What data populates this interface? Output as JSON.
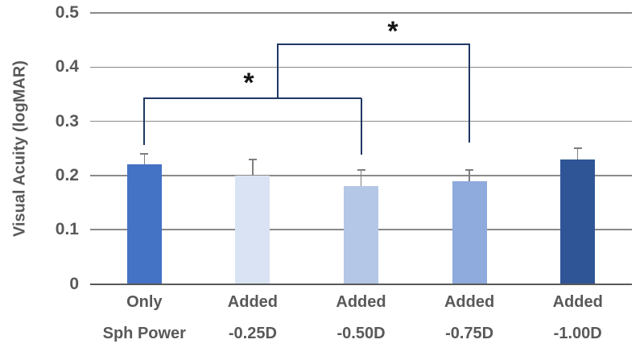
{
  "chart_data": {
    "type": "bar",
    "ylabel": "Visual Acuity (logMAR)",
    "xlabel": "",
    "ylim": [
      0,
      0.5
    ],
    "grid": true,
    "yticks": [
      {
        "value": 0,
        "label": "0"
      },
      {
        "value": 0.1,
        "label": "0.1"
      },
      {
        "value": 0.2,
        "label": "0.2"
      },
      {
        "value": 0.3,
        "label": "0.3"
      },
      {
        "value": 0.4,
        "label": "0.4"
      },
      {
        "value": 0.5,
        "label": "0.5"
      }
    ],
    "categories": [
      {
        "line1": "Only",
        "line2": "Sph Power"
      },
      {
        "line1": "Added",
        "line2": "-0.25D"
      },
      {
        "line1": "Added",
        "line2": "-0.50D"
      },
      {
        "line1": "Added",
        "line2": "-0.75D"
      },
      {
        "line1": "Added",
        "line2": "-1.00D"
      }
    ],
    "values": [
      0.22,
      0.2,
      0.18,
      0.19,
      0.23
    ],
    "error_bar_tops": [
      0.24,
      0.23,
      0.21,
      0.21,
      0.25
    ],
    "bar_colors": [
      "#4472C4",
      "#DAE3F3",
      "#B4C7E7",
      "#8FAADC",
      "#2F5597"
    ],
    "significance_brackets": [
      {
        "label": "*",
        "between": [
          "Only Sph Power",
          "Added -0.50D"
        ]
      },
      {
        "label": "*",
        "between": [
          "Only Sph Power / Added -0.50D group",
          "Added -0.75D"
        ]
      }
    ],
    "colors": {
      "axis_text": "#595959",
      "gridline": "#8A8A8A",
      "baseline": "#595959",
      "error_bar": "#7F7F7F",
      "bracket": "#1F3864",
      "asterisk": "#141414",
      "background": "#FFFFFF"
    }
  }
}
